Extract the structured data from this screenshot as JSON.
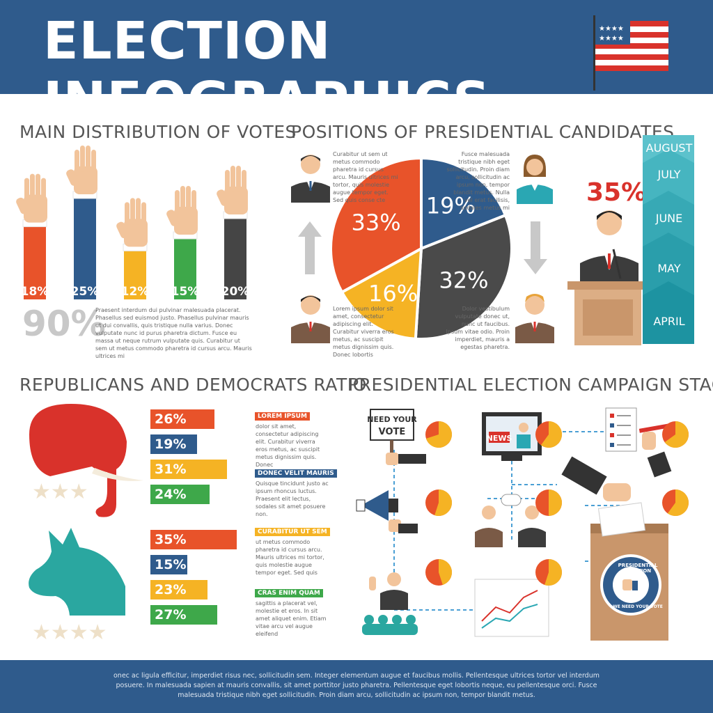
{
  "header": {
    "title": "ELECTION INFOGRAPHICS"
  },
  "votes": {
    "title": "MAIN DISTRIBUTION OF VOTES",
    "bars": [
      {
        "label": "18%",
        "value": 18,
        "color": "#e8532a"
      },
      {
        "label": "25%",
        "value": 25,
        "color": "#2f5b8c"
      },
      {
        "label": "12%",
        "value": 12,
        "color": "#f5b324"
      },
      {
        "label": "15%",
        "value": 15,
        "color": "#3ea84a"
      },
      {
        "label": "20%",
        "value": 20,
        "color": "#454545"
      }
    ],
    "total": "90%",
    "text": "Praesent interdum dui pulvinar malesuada placerat. Phasellus sed euismod justo. Phasellus pulvinar mauris ut dui convallis, quis tristique nulla varius. Donec vulputate nunc id purus pharetra dictum. Fusce eu massa ut neque rutrum vulputate quis. Curabitur ut sem ut metus commodo pharetra id cursus arcu. Mauris ultrices mi"
  },
  "positions": {
    "title": "POSITIONS OF PRESIDENTIAL CANDIDATES",
    "slices": [
      {
        "label": "19%",
        "value": 19,
        "color": "#2f5b8c"
      },
      {
        "label": "32%",
        "value": 32,
        "color": "#4a4a4a"
      },
      {
        "label": "16%",
        "value": 16,
        "color": "#f5b324"
      },
      {
        "label": "33%",
        "value": 33,
        "color": "#e8532a"
      }
    ],
    "text_top_left": "Curabitur ut sem ut metus commodo pharetra id cursus arcu. Mauris ultrices mi tortor, quis molestie augue tempor eget. Sed quis conse cte",
    "text_top_right": "Fusce malesuada tristique nibh eget sollicitudin. Proin diam arcu, sollicitudin ac ipsum non, tempor blandit metus. Nulla vel erat facilisis, sodales metus mi",
    "text_bottom_left": "Lorem ipsum dolor sit amet, consectetur adipiscing elit. Curabitur viverra eros metus, ac suscipit metus dignissim quis. Donec lobortis",
    "text_bottom_right": "Dolor vestibulum vulputate donec ut, nunc ut faucibus. Ipsum vitae odio. Proin imperdiet, mauris a egestas pharetra.",
    "leader_pct": "35%",
    "months": [
      "AUGUST",
      "JULY",
      "JUNE",
      "MAY",
      "APRIL"
    ]
  },
  "ratio": {
    "title": "REPUBLICANS AND DEMOCRATS RATIO",
    "republican": [
      {
        "label": "26%",
        "value": 26,
        "color": "#e8532a"
      },
      {
        "label": "19%",
        "value": 19,
        "color": "#2f5b8c"
      },
      {
        "label": "31%",
        "value": 31,
        "color": "#f5b324"
      },
      {
        "label": "24%",
        "value": 24,
        "color": "#3ea84a"
      }
    ],
    "democrat": [
      {
        "label": "35%",
        "value": 35,
        "color": "#e8532a"
      },
      {
        "label": "15%",
        "value": 15,
        "color": "#2f5b8c"
      },
      {
        "label": "23%",
        "value": 23,
        "color": "#f5b324"
      },
      {
        "label": "27%",
        "value": 27,
        "color": "#3ea84a"
      }
    ],
    "notes": [
      {
        "title": "LOREM IPSUM",
        "color": "#e8532a",
        "text": "dolor sit amet, consectetur adipiscing elit. Curabitur viverra eros metus, ac suscipit metus dignissim quis. Donec"
      },
      {
        "title": "DONEC VELIT MAURIS",
        "color": "#2f5b8c",
        "text": "Quisque tincidunt justo ac ipsum rhoncus luctus. Praesent elit lectus, sodales sit amet posuere non."
      },
      {
        "title": "CURABITUR UT SEM",
        "color": "#f5b324",
        "text": "ut metus commodo pharetra id cursus arcu. Mauris ultrices mi tortor, quis molestie augue tempor eget. Sed quis"
      },
      {
        "title": "CRAS ENIM QUAM",
        "color": "#3ea84a",
        "text": "sagittis a placerat vel, molestie et eros. In sit amet aliquet enim. Etiam vitae arcu vel augue eleifend"
      }
    ]
  },
  "stages": {
    "title": "PRESIDENTIAL ELECTION CAMPAIGN STAGES",
    "sign_line1": "NEED YOUR",
    "sign_line2": "VOTE",
    "news_label": "NEWS",
    "badge_text": "PRESIDENTIAL ELECTION",
    "badge_bottom": "WE NEED YOUR VOTE"
  },
  "footer": {
    "text": "onec ac ligula efficitur, imperdiet risus nec, sollicitudin sem. Integer elementum augue et faucibus mollis. Pellentesque ultrices tortor vel interdum posuere. In malesuada sapien at mauris convallis, sit amet porttitor justo pharetra. Pellentesque eget lobortis neque, eu pellentesque orci. Fusce malesuada tristique nibh eget sollicitudin. Proin diam arcu, sollicitudin ac ipsum non, tempor blandit metus."
  }
}
